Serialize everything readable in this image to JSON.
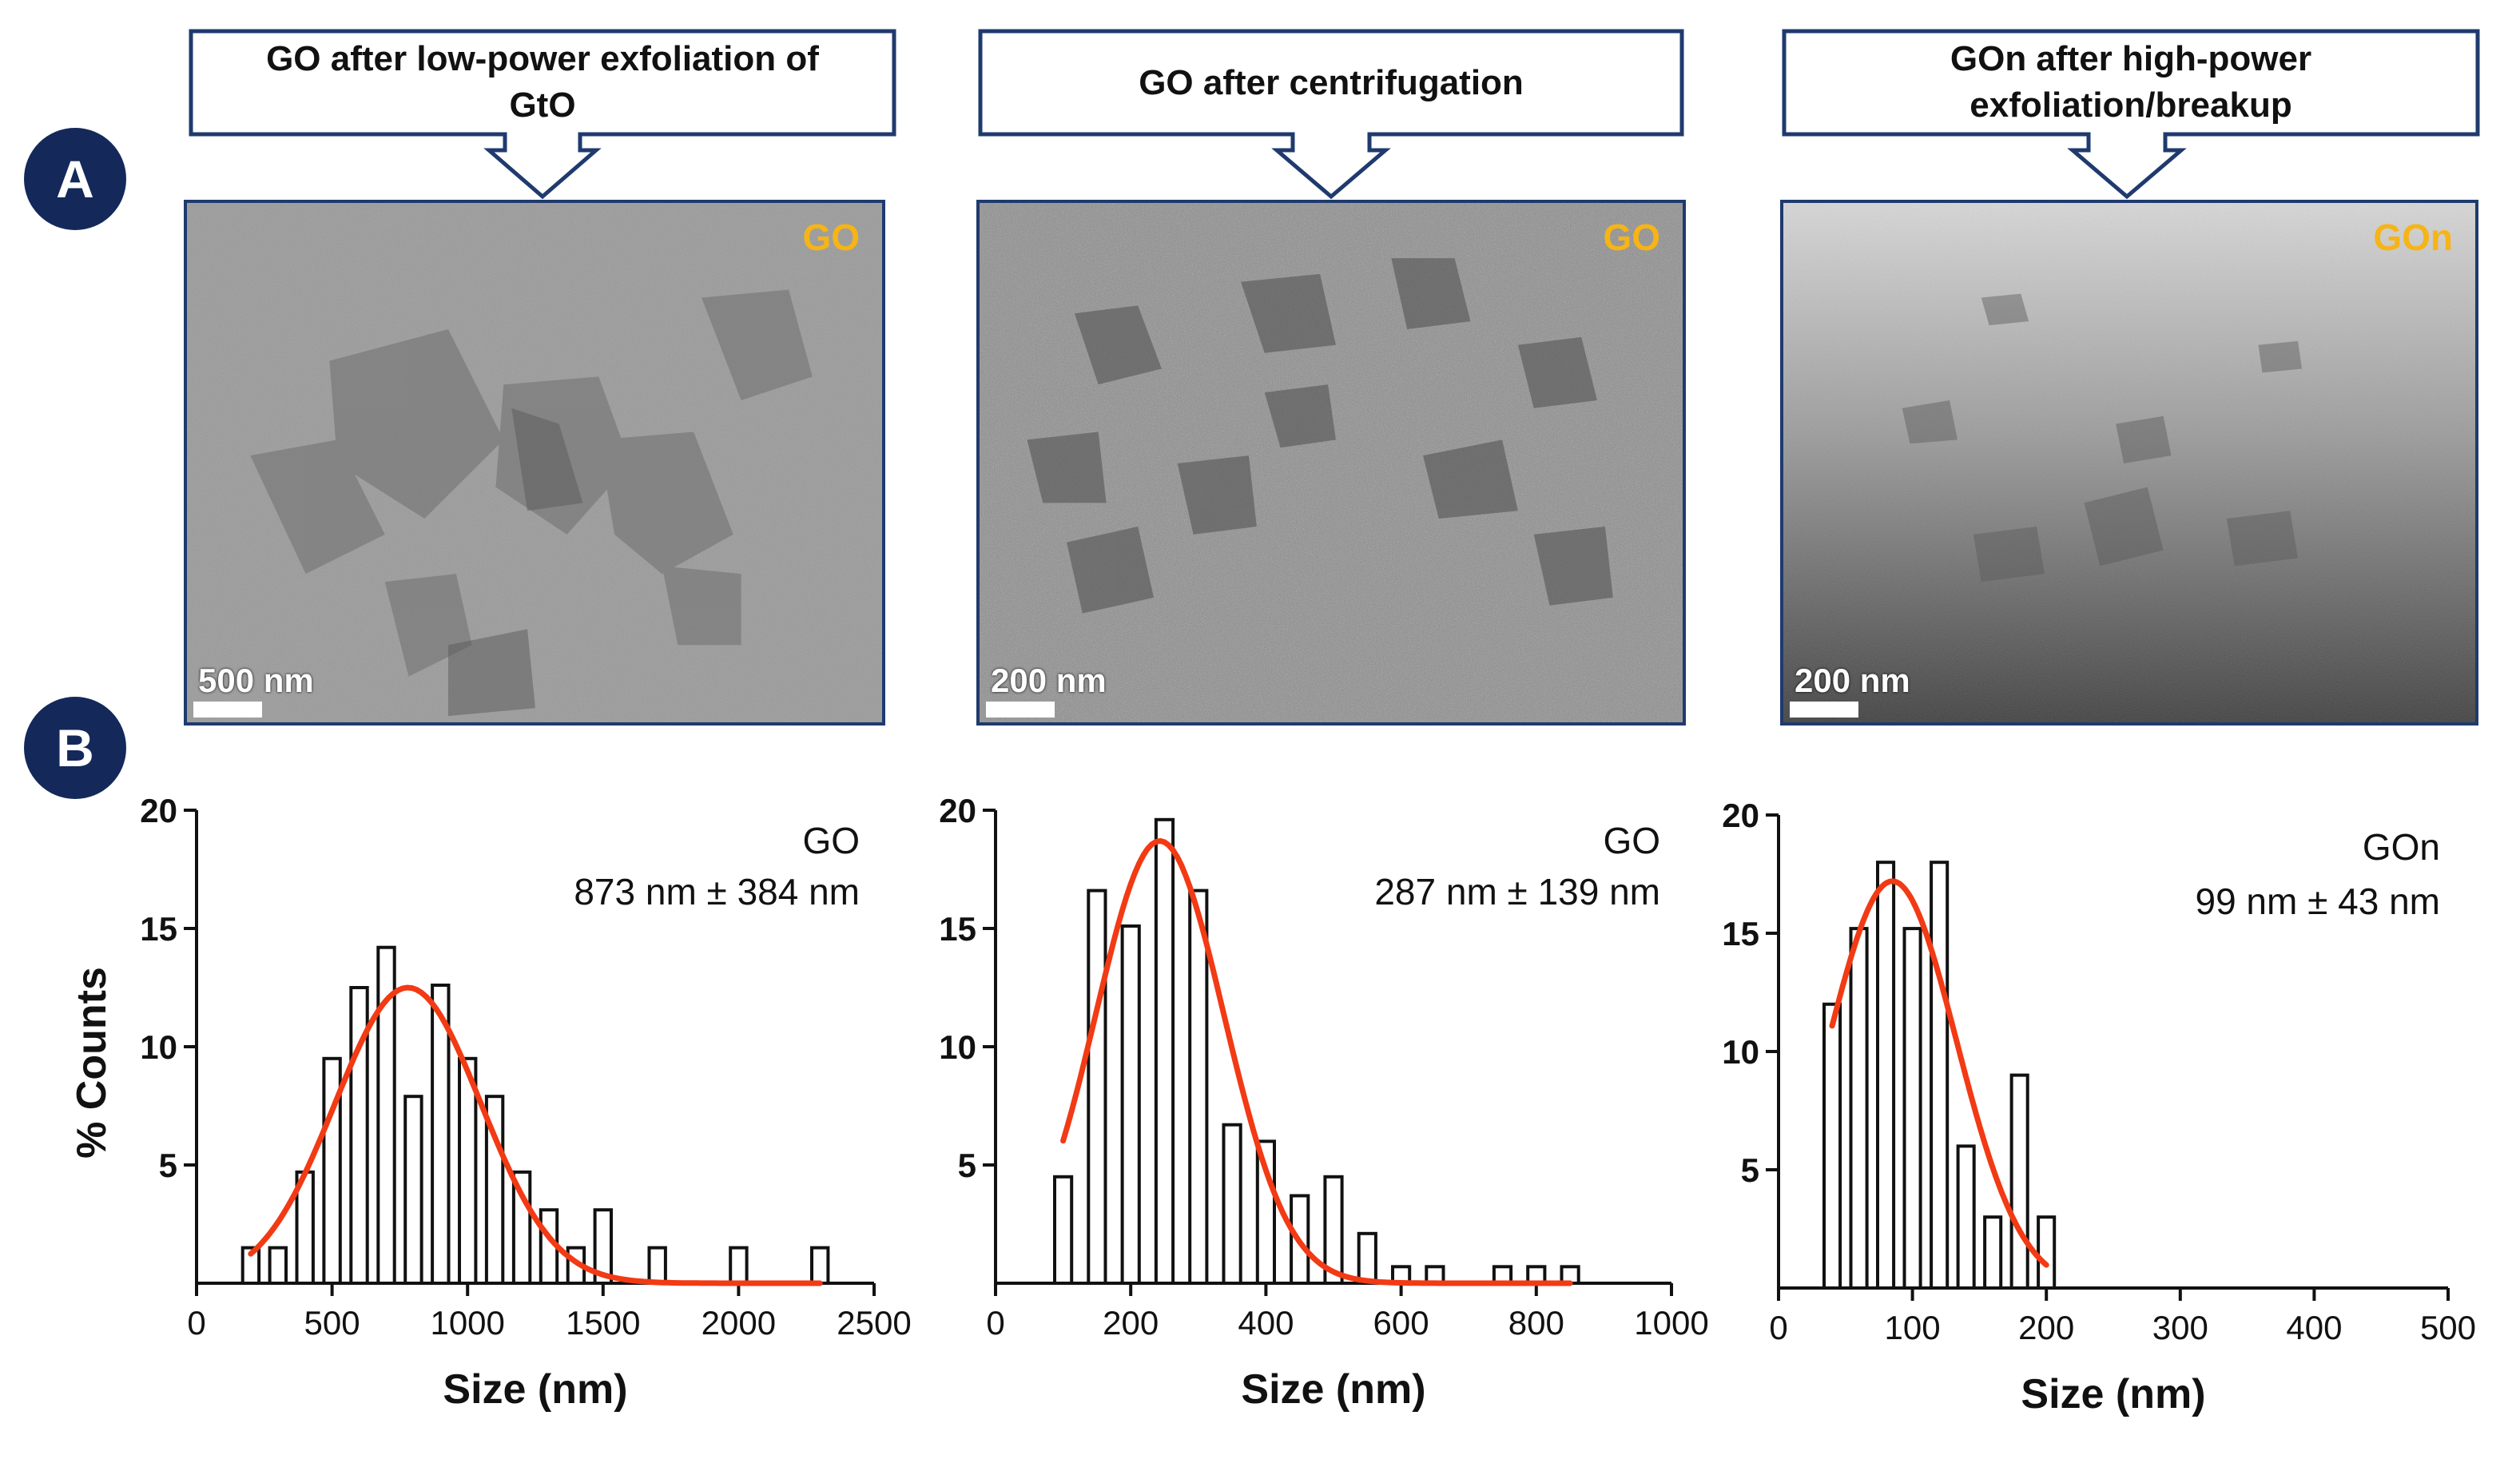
{
  "panels": {
    "a_label": "A",
    "b_label": "B"
  },
  "tem": [
    {
      "callout": "GO after low-power exfoliation of GtO",
      "callout_line1": "GO after low-power exfoliation of",
      "callout_line2": "GtO",
      "label": "GO",
      "scale_label": "500 nm"
    },
    {
      "callout": "GO after centrifugation",
      "callout_line1": "GO after centrifugation",
      "callout_line2": "",
      "label": "GO",
      "scale_label": "200 nm"
    },
    {
      "callout": "GOn after high-power exfoliation/breakup",
      "callout_line1": "GOn after high-power",
      "callout_line2": "exfoliation/breakup",
      "label": "GOn",
      "scale_label": "200 nm"
    }
  ],
  "colors": {
    "navy": "#14295a",
    "frame": "#1f3a6e",
    "fit": "#f23a14",
    "label_yellow": "#f6b416"
  },
  "chart_data": [
    {
      "type": "bar",
      "title": "",
      "xlabel": "Size (nm)",
      "ylabel": "% Counts",
      "xlim": [
        0,
        2500
      ],
      "ylim": [
        0,
        20
      ],
      "xticks": [
        0,
        500,
        1000,
        1500,
        2000,
        2500
      ],
      "yticks": [
        5,
        10,
        15,
        20
      ],
      "bin_width": 60,
      "legend": [
        "GO",
        "873 nm ± 384 nm"
      ],
      "centers": [
        200,
        300,
        400,
        500,
        600,
        700,
        800,
        900,
        1000,
        1100,
        1200,
        1300,
        1400,
        1500,
        1700,
        2000,
        2300
      ],
      "values": [
        1.5,
        1.5,
        4.7,
        9.5,
        12.5,
        14.2,
        7.9,
        12.6,
        9.5,
        7.9,
        4.7,
        3.1,
        1.5,
        3.1,
        1.5,
        1.5,
        1.5
      ],
      "fit": {
        "type": "gaussian",
        "mean": 780,
        "sd": 270,
        "amplitude": 12.5,
        "range": [
          200,
          2300
        ]
      }
    },
    {
      "type": "bar",
      "title": "",
      "xlabel": "Size (nm)",
      "ylabel": "",
      "xlim": [
        0,
        1000
      ],
      "ylim": [
        0,
        20
      ],
      "xticks": [
        0,
        200,
        400,
        600,
        800,
        1000
      ],
      "yticks": [
        5,
        10,
        15,
        20
      ],
      "bin_width": 25,
      "legend": [
        "GO",
        "287 nm ± 139 nm"
      ],
      "centers": [
        100,
        150,
        200,
        250,
        300,
        350,
        400,
        450,
        500,
        550,
        600,
        650,
        750,
        800,
        850
      ],
      "values": [
        4.5,
        16.6,
        15.1,
        19.6,
        16.6,
        6.7,
        6.0,
        3.7,
        4.5,
        2.1,
        0.7,
        0.7,
        0.7,
        0.7,
        0.7
      ],
      "fit": {
        "type": "gaussian",
        "mean": 243,
        "sd": 95,
        "amplitude": 18.7,
        "range": [
          100,
          850
        ]
      }
    },
    {
      "type": "bar",
      "title": "",
      "xlabel": "Size (nm)",
      "ylabel": "",
      "xlim": [
        0,
        500
      ],
      "ylim": [
        0,
        20
      ],
      "xticks": [
        0,
        100,
        200,
        300,
        400,
        500
      ],
      "yticks": [
        5,
        10,
        15,
        20
      ],
      "bin_width": 12,
      "legend": [
        "GOn",
        "99 nm ± 43 nm"
      ],
      "centers": [
        40,
        60,
        80,
        100,
        120,
        140,
        160,
        180,
        200
      ],
      "values": [
        12.0,
        15.2,
        18.0,
        15.2,
        18.0,
        6.0,
        3.0,
        9.0,
        3.0
      ],
      "fit": {
        "type": "gaussian",
        "mean": 85,
        "sd": 48,
        "amplitude": 17.2,
        "range": [
          40,
          200
        ]
      }
    }
  ]
}
